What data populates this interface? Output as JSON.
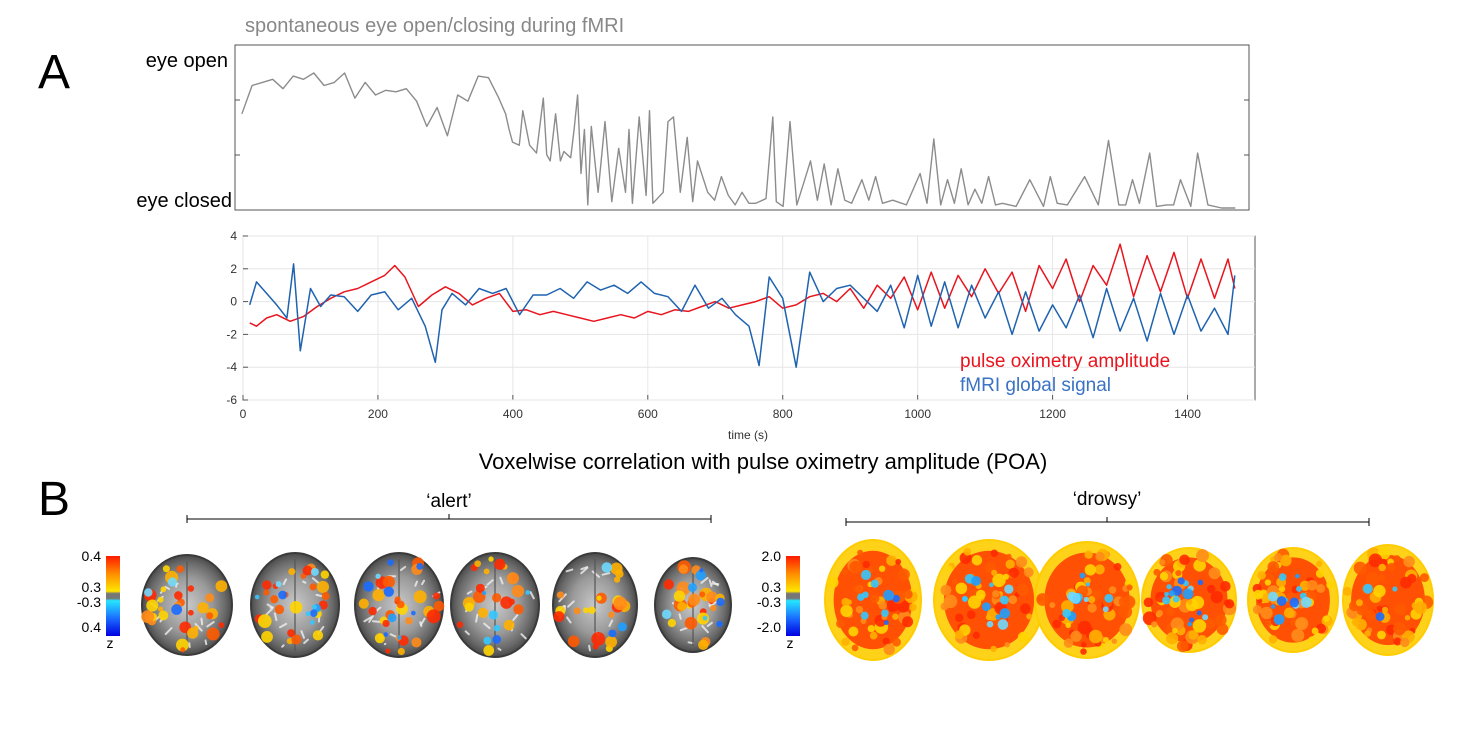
{
  "panel_labels": {
    "a": "A",
    "b": "B"
  },
  "chart_data": [
    {
      "type": "line",
      "title": "spontaneous eye open/closing during fMRI",
      "ylabel_top": "eye open",
      "ylabel_bottom": "eye closed",
      "xlim": [
        0,
        1480
      ],
      "ylim": [
        0,
        1
      ],
      "series": [
        {
          "name": "eye openness",
          "color": "#8c8c8c",
          "x": [
            10,
            25,
            40,
            55,
            70,
            85,
            100,
            115,
            130,
            145,
            160,
            175,
            190,
            205,
            220,
            235,
            250,
            265,
            280,
            295,
            310,
            325,
            340,
            355,
            370,
            385,
            395,
            400,
            405,
            415,
            420,
            430,
            440,
            450,
            455,
            460,
            468,
            475,
            480,
            490,
            495,
            500,
            505,
            510,
            515,
            520,
            530,
            540,
            550,
            560,
            570,
            575,
            580,
            590,
            600,
            605,
            610,
            625,
            632,
            640,
            650,
            660,
            668,
            675,
            690,
            700,
            710,
            720,
            730,
            740,
            750,
            760,
            775,
            785,
            790,
            800,
            810,
            820,
            830,
            840,
            850,
            860,
            870,
            880,
            890,
            900,
            915,
            925,
            935,
            945,
            960,
            980,
            1000,
            1010,
            1020,
            1030,
            1040,
            1050,
            1060,
            1070,
            1080,
            1090,
            1100,
            1110,
            1120,
            1140,
            1160,
            1180,
            1190,
            1200,
            1215,
            1240,
            1260,
            1275,
            1290,
            1300,
            1310,
            1320,
            1335,
            1345,
            1360,
            1370,
            1380,
            1395,
            1405,
            1420,
            1440,
            1460
          ],
          "values": [
            0.6,
            0.78,
            0.8,
            0.82,
            0.76,
            0.84,
            0.82,
            0.86,
            0.78,
            0.8,
            0.86,
            0.7,
            0.8,
            0.72,
            0.75,
            0.74,
            0.76,
            0.68,
            0.52,
            0.64,
            0.46,
            0.72,
            0.68,
            0.84,
            0.83,
            0.7,
            0.6,
            0.5,
            0.42,
            0.4,
            0.62,
            0.4,
            0.35,
            0.7,
            0.34,
            0.3,
            0.6,
            0.3,
            0.36,
            0.32,
            0.5,
            0.72,
            0.22,
            0.5,
            0.02,
            0.52,
            0.1,
            0.55,
            0.04,
            0.38,
            0.1,
            0.5,
            0.03,
            0.58,
            0.08,
            0.62,
            0.03,
            0.1,
            0.55,
            0.58,
            0.1,
            0.45,
            0.04,
            0.3,
            0.1,
            0.05,
            0.2,
            0.08,
            0.02,
            0.1,
            0.03,
            0.03,
            0.06,
            0.58,
            0.04,
            0.01,
            0.55,
            0.02,
            0.16,
            0.3,
            0.05,
            0.28,
            0.02,
            0.25,
            0.05,
            0.03,
            0.18,
            0.05,
            0.2,
            0.03,
            0.05,
            0.02,
            0.22,
            0.03,
            0.44,
            0.02,
            0.18,
            0.03,
            0.25,
            0.02,
            0.12,
            0.03,
            0.2,
            0.02,
            0.03,
            0.01,
            0.18,
            0.01,
            0.2,
            0.03,
            0.02,
            0.2,
            0.02,
            0.43,
            0.02,
            0.02,
            0.18,
            0.03,
            0.35,
            0.01,
            0.02,
            0.02,
            0.18,
            0.01,
            0.35,
            0.02,
            0.0,
            0.0
          ]
        }
      ]
    },
    {
      "type": "line",
      "title": "",
      "xlabel": "time (s)",
      "xlim": [
        0,
        1500
      ],
      "ylim": [
        -6,
        4
      ],
      "xticks": [
        0,
        200,
        400,
        600,
        800,
        1000,
        1200,
        1400
      ],
      "yticks": [
        4,
        2,
        0,
        -2,
        -4,
        -6
      ],
      "legend": "bottom-right",
      "series": [
        {
          "name": "pulse oximetry amplitude",
          "color": "#e8141e",
          "x": [
            10,
            20,
            35,
            50,
            70,
            90,
            110,
            130,
            150,
            170,
            190,
            210,
            225,
            240,
            260,
            280,
            300,
            320,
            340,
            360,
            380,
            400,
            420,
            440,
            460,
            480,
            500,
            520,
            540,
            560,
            580,
            600,
            620,
            640,
            660,
            680,
            700,
            720,
            740,
            760,
            780,
            800,
            820,
            840,
            860,
            880,
            900,
            920,
            940,
            960,
            980,
            1000,
            1020,
            1040,
            1060,
            1080,
            1100,
            1120,
            1140,
            1160,
            1180,
            1200,
            1220,
            1240,
            1260,
            1280,
            1300,
            1320,
            1340,
            1360,
            1380,
            1400,
            1420,
            1440,
            1460,
            1470
          ],
          "values": [
            -1.3,
            -1.5,
            -1.0,
            -0.8,
            -1.2,
            -0.9,
            -0.3,
            0.2,
            0.6,
            0.8,
            1.2,
            1.6,
            2.2,
            1.5,
            -0.3,
            0.4,
            0.9,
            0.5,
            -0.2,
            0.2,
            0.5,
            -0.6,
            -0.5,
            -0.8,
            -0.6,
            -0.8,
            -1.0,
            -1.2,
            -1.0,
            -0.8,
            -1.0,
            -0.6,
            -0.8,
            -0.5,
            -0.6,
            -0.3,
            0.0,
            -0.4,
            -0.2,
            0.0,
            0.3,
            -0.4,
            -0.2,
            0.3,
            0.5,
            0.0,
            0.8,
            -0.4,
            1.0,
            0.2,
            1.5,
            -0.5,
            1.8,
            -0.4,
            1.6,
            0.3,
            2.0,
            0.5,
            1.8,
            -0.6,
            2.2,
            0.8,
            2.6,
            0.0,
            2.2,
            1.0,
            3.5,
            0.3,
            2.8,
            0.6,
            3.0,
            0.2,
            2.6,
            0.2,
            2.6,
            0.8
          ]
        },
        {
          "name": "fMRI global signal",
          "color": "#1f63b0",
          "x": [
            10,
            20,
            35,
            50,
            65,
            75,
            85,
            100,
            115,
            130,
            150,
            170,
            190,
            210,
            230,
            250,
            270,
            285,
            295,
            310,
            330,
            350,
            370,
            390,
            410,
            430,
            450,
            470,
            490,
            510,
            530,
            550,
            570,
            590,
            610,
            630,
            650,
            670,
            690,
            710,
            730,
            750,
            765,
            780,
            800,
            820,
            840,
            860,
            880,
            900,
            920,
            940,
            960,
            980,
            1000,
            1020,
            1040,
            1060,
            1080,
            1100,
            1120,
            1140,
            1160,
            1180,
            1200,
            1220,
            1240,
            1260,
            1280,
            1300,
            1320,
            1340,
            1360,
            1380,
            1400,
            1420,
            1440,
            1460,
            1470
          ],
          "values": [
            -0.2,
            1.2,
            0.5,
            -0.2,
            -1.0,
            2.3,
            -3.0,
            0.8,
            -0.3,
            0.4,
            0.3,
            -0.6,
            0.4,
            0.6,
            -0.5,
            0.2,
            -1.5,
            -3.7,
            -0.5,
            0.5,
            -0.2,
            0.8,
            0.5,
            0.8,
            -0.8,
            0.4,
            0.4,
            0.8,
            0.2,
            1.2,
            0.7,
            1.0,
            0.5,
            1.2,
            0.5,
            0.3,
            -0.6,
            1.0,
            -0.4,
            0.2,
            -0.8,
            -1.5,
            -3.9,
            1.5,
            0.2,
            -4.0,
            1.8,
            0.0,
            0.8,
            1.0,
            0.2,
            -0.6,
            1.0,
            -1.6,
            1.6,
            -1.5,
            1.2,
            -1.6,
            1.0,
            -1.0,
            0.6,
            -2.0,
            0.6,
            -1.8,
            -0.2,
            -1.6,
            0.4,
            -2.2,
            0.8,
            -1.8,
            0.2,
            -2.4,
            0.5,
            -2.0,
            0.4,
            -1.8,
            -0.4,
            -2.0,
            1.6
          ]
        }
      ]
    },
    {
      "type": "heatmap",
      "title": "Voxelwise correlation with pulse oximetry amplitude (POA)",
      "groups": [
        {
          "label": "‘alert’",
          "slices": 6,
          "colorbar": {
            "labels": [
              "0.4",
              "0.3",
              "-0.3",
              "0.4",
              "z"
            ]
          },
          "positive_coverage": [
            0.5,
            0.4,
            0.45,
            0.35,
            0.35,
            0.4
          ],
          "negative_coverage": [
            0.05,
            0.15,
            0.15,
            0.1,
            0.05,
            0.12
          ]
        },
        {
          "label": "‘drowsy’",
          "slices": 6,
          "colorbar": {
            "labels": [
              "2.0",
              "0.3",
              "-0.3",
              "-2.0",
              "z"
            ]
          },
          "positive_coverage": [
            0.85,
            0.9,
            0.9,
            0.88,
            0.88,
            0.92
          ],
          "negative_coverage": [
            0.15,
            0.2,
            0.2,
            0.25,
            0.2,
            0.05
          ]
        }
      ]
    }
  ]
}
